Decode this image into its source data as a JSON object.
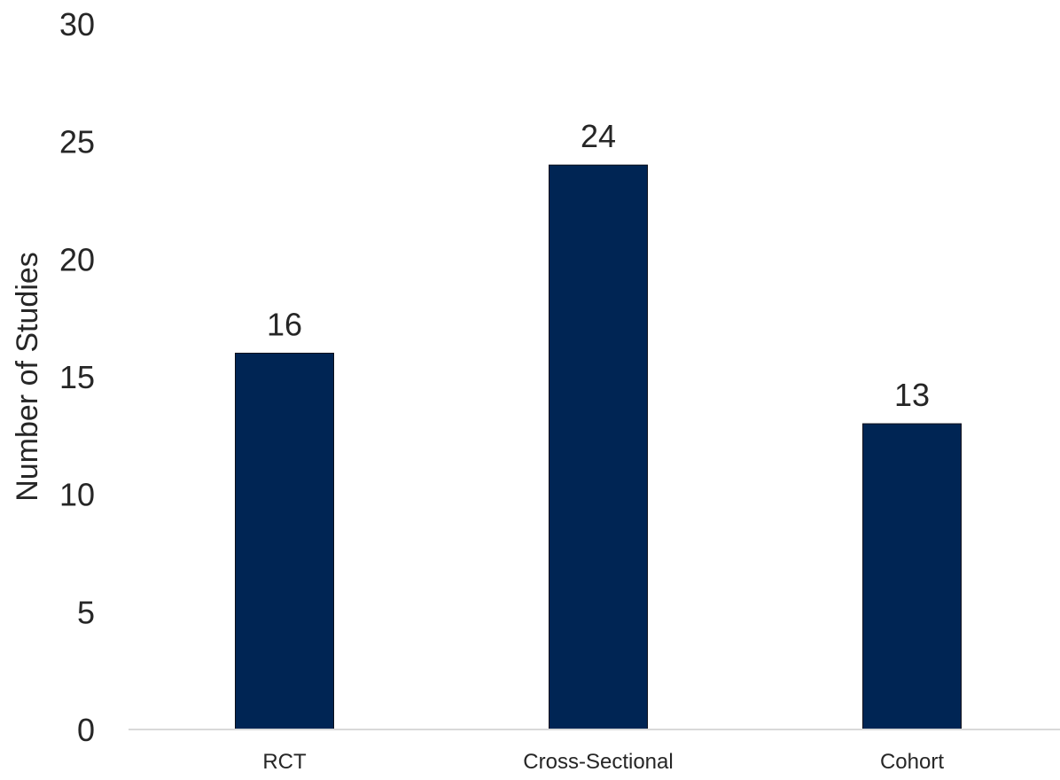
{
  "chart_data": {
    "type": "bar",
    "title": "",
    "xlabel": "",
    "ylabel": "Number of Studies",
    "categories": [
      "RCT",
      "Cross-Sectional",
      "Cohort"
    ],
    "values": [
      16,
      24,
      13
    ],
    "ylim": [
      0,
      30
    ],
    "yticks": [
      0,
      5,
      10,
      15,
      20,
      25,
      30
    ],
    "grid": false,
    "legend": "none",
    "data_labels": true,
    "bar_color": "#002554",
    "axis_color": "#d9d9d9"
  }
}
